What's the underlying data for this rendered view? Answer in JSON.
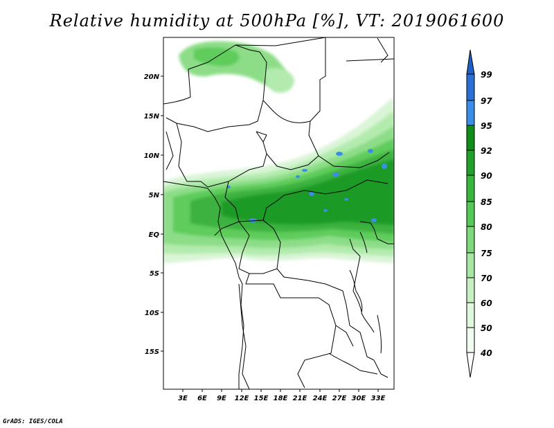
{
  "title": "Relative humidity at 500hPa [%], VT: 2019061600",
  "credit": "GrADS: IGES/COLA",
  "map": {
    "lat_ticks": [
      "20N",
      "15N",
      "10N",
      "5N",
      "EQ",
      "5S",
      "10S",
      "15S"
    ],
    "lon_ticks": [
      "3E",
      "6E",
      "9E",
      "12E",
      "15E",
      "18E",
      "21E",
      "24E",
      "27E",
      "30E",
      "33E"
    ]
  },
  "colorbar": {
    "labels": [
      "99",
      "97",
      "95",
      "92",
      "90",
      "85",
      "80",
      "75",
      "70",
      "60",
      "50",
      "40"
    ],
    "colors": {
      "top_arrow": "#1f5fc8",
      "99": "#2a6fd6",
      "97": "#3a8ee8",
      "95": "#0f8f1a",
      "92": "#22a12a",
      "90": "#37b83c",
      "85": "#55c956",
      "80": "#7ed87c",
      "75": "#a6e6a2",
      "70": "#c6f0c2",
      "60": "#dff7dc",
      "50": "#f0fcef",
      "40": "#ffffff"
    }
  }
}
